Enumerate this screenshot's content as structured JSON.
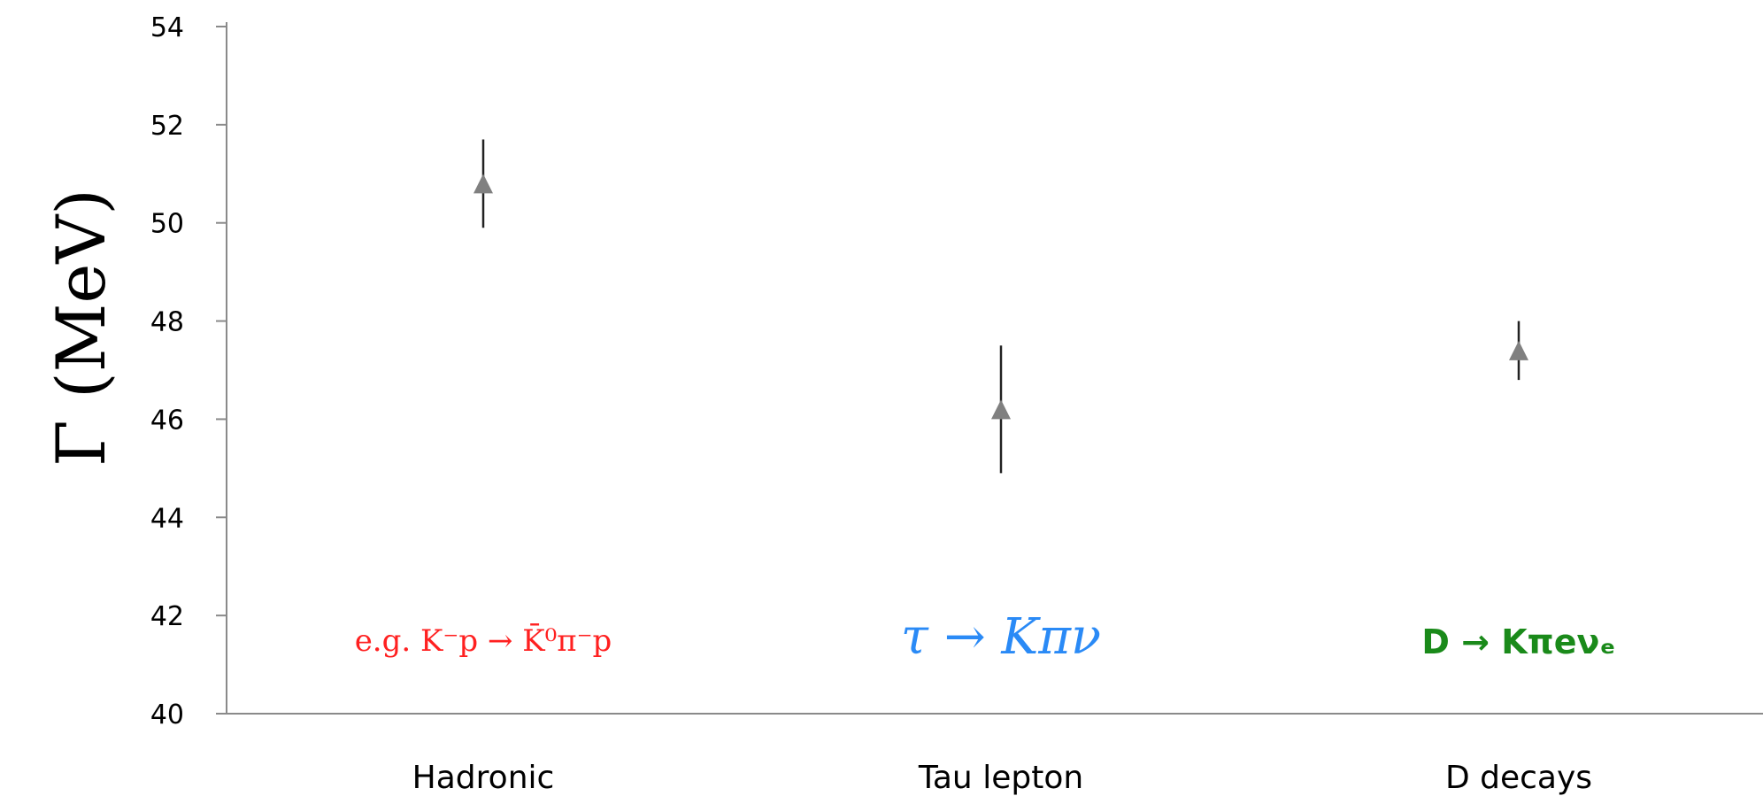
{
  "chart_data": {
    "type": "scatter",
    "title": "",
    "xlabel": "",
    "ylabel": "Γ (MeV)",
    "categories": [
      "Hadronic",
      "Tau lepton",
      "D decays"
    ],
    "values": [
      50.8,
      46.2,
      47.4
    ],
    "error_low": [
      49.9,
      44.9,
      46.8
    ],
    "error_high": [
      51.7,
      47.5,
      48.0
    ],
    "ylim": [
      40,
      54
    ],
    "yticks": [
      "40",
      "42",
      "44",
      "46",
      "48",
      "50",
      "52",
      "54"
    ],
    "marker": "triangle",
    "marker_color": "#808080",
    "grid": false,
    "annotations": [
      {
        "text": "e.g. K⁻p → K̄⁰π⁻p",
        "color": "#ff2020"
      },
      {
        "text": "τ → Kπν",
        "color": "#2a8af6"
      },
      {
        "text": "D → Kπeνₑ",
        "color": "#1a8a1a"
      }
    ]
  }
}
